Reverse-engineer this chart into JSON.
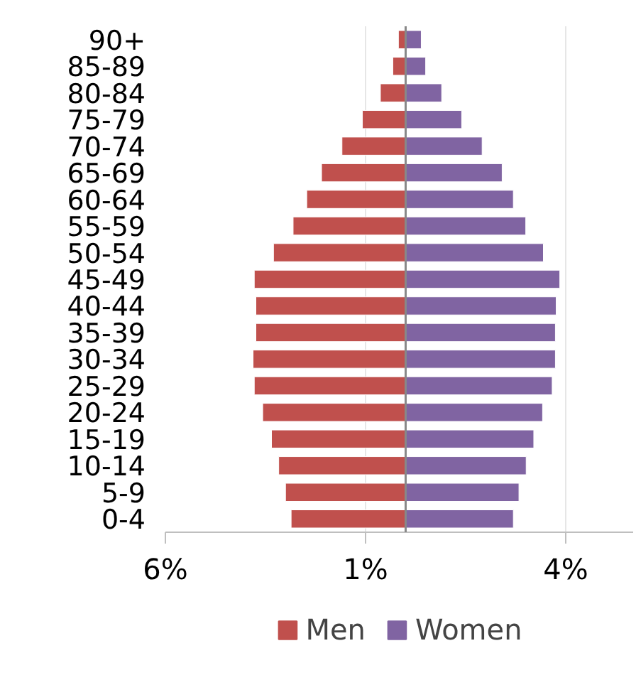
{
  "chart_data": {
    "type": "bar",
    "orientation": "horizontal",
    "categories": [
      "90+",
      "85-89",
      "80-84",
      "75-79",
      "70-74",
      "65-69",
      "60-64",
      "55-59",
      "50-54",
      "45-49",
      "40-44",
      "35-39",
      "30-34",
      "25-29",
      "20-24",
      "15-19",
      "10-14",
      "5-9",
      "0-4"
    ],
    "series": [
      {
        "name": "Men",
        "color": "#c0504d",
        "values": [
          -0.18,
          -0.32,
          -0.63,
          -1.08,
          -1.59,
          -2.1,
          -2.47,
          -2.81,
          -3.3,
          -3.78,
          -3.74,
          -3.74,
          -3.81,
          -3.78,
          -3.57,
          -3.35,
          -3.17,
          -3.0,
          -2.86
        ]
      },
      {
        "name": "Women",
        "color": "#8064a2",
        "values": [
          0.39,
          0.5,
          0.9,
          1.4,
          1.91,
          2.41,
          2.69,
          3.0,
          3.44,
          3.85,
          3.76,
          3.74,
          3.74,
          3.66,
          3.42,
          3.2,
          3.01,
          2.83,
          2.69
        ]
      }
    ],
    "xlim": [
      -6,
      5.7
    ],
    "xticks": [
      {
        "value": -6,
        "label": "6%"
      },
      {
        "value": -1,
        "label": "1%"
      },
      {
        "value": 4,
        "label": "4%"
      }
    ],
    "grid": "x",
    "legend": "bottom",
    "stacked": true
  }
}
